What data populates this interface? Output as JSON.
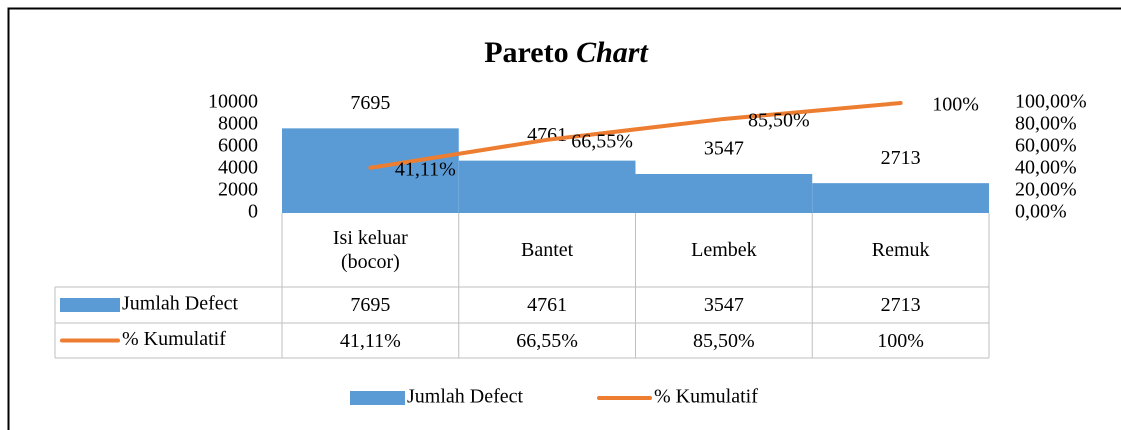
{
  "chart_data": {
    "type": "pareto",
    "title": "Pareto Chart",
    "categories": [
      "Isi keluar (bocor)",
      "Bantet",
      "Lembek",
      "Remuk"
    ],
    "series": [
      {
        "name": "Jumlah Defect",
        "color": "#5b9bd5",
        "values": [
          7695,
          4761,
          3547,
          2713
        ]
      },
      {
        "name": "% Kumulatif",
        "color": "#ed7d31",
        "axis": "y2",
        "values": [
          41.11,
          66.55,
          85.5,
          100
        ],
        "value_labels": [
          "41,11%",
          "66,55%",
          "85,50%",
          "100%"
        ]
      }
    ],
    "ylim": [
      0,
      10000
    ],
    "yticks": [
      0,
      2000,
      4000,
      6000,
      8000,
      10000
    ],
    "y2lim": [
      0,
      100
    ],
    "y2ticks": [
      {
        "value": 0,
        "label": "0,00%"
      },
      {
        "value": 20,
        "label": "20,00%"
      },
      {
        "value": 40,
        "label": "40,00%"
      },
      {
        "value": 60,
        "label": "60,00%"
      },
      {
        "value": 80,
        "label": "80,00%"
      },
      {
        "value": 100,
        "label": "100,00%"
      }
    ],
    "grid": false,
    "legend": "bottom",
    "data_table": true
  }
}
